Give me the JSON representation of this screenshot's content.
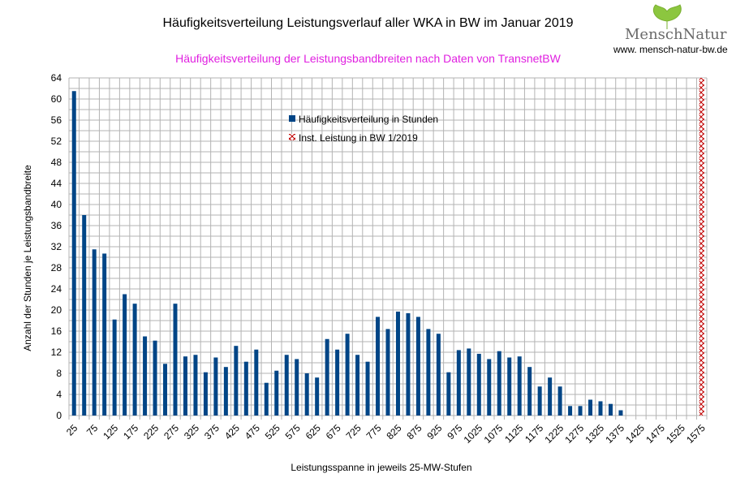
{
  "chart_data": {
    "type": "bar",
    "title": "Häufigkeitsverteilung Leistungsverlauf aller WKA in BW im Januar 2019",
    "subtitle": "Häufigkeitsverteilung der Leistungsbandbreiten nach Daten von TransnetBW",
    "xlabel": "Leistungsspanne in jeweils 25-MW-Stufen",
    "ylabel": "Anzahl der Stunden je Leistungsbandbreite",
    "ylim": [
      0,
      64
    ],
    "yticks": [
      0,
      4,
      8,
      12,
      16,
      20,
      24,
      28,
      32,
      36,
      40,
      44,
      48,
      52,
      56,
      60,
      64
    ],
    "grid": true,
    "legend_position": "top-center",
    "categories": [
      25,
      50,
      75,
      100,
      125,
      150,
      175,
      200,
      225,
      250,
      275,
      300,
      325,
      350,
      375,
      400,
      425,
      450,
      475,
      500,
      525,
      550,
      575,
      600,
      625,
      650,
      675,
      700,
      725,
      750,
      775,
      800,
      825,
      850,
      875,
      900,
      925,
      950,
      975,
      1000,
      1025,
      1050,
      1075,
      1100,
      1125,
      1150,
      1175,
      1200,
      1225,
      1250,
      1275,
      1300,
      1325,
      1350,
      1375,
      1400,
      1425,
      1450,
      1475,
      1500,
      1525,
      1550,
      1575
    ],
    "series": [
      {
        "name": "Häufigkeitsverteilung in Stunden",
        "color": "#004586",
        "values": [
          61.5,
          38,
          31.5,
          30.7,
          18.2,
          23,
          21.2,
          15,
          14.2,
          9.8,
          21.2,
          11.2,
          11.5,
          8.2,
          11,
          9.2,
          13.2,
          10.2,
          12.5,
          6.2,
          8.5,
          11.5,
          10.7,
          8,
          7.2,
          14.5,
          12.5,
          15.5,
          11.5,
          10.2,
          18.7,
          16.4,
          19.7,
          19.4,
          18.7,
          16.4,
          15.5,
          8.2,
          12.4,
          12.7,
          11.7,
          10.7,
          12.2,
          11,
          11.2,
          9.2,
          5.5,
          7.2,
          5.5,
          1.8,
          1.8,
          3,
          2.7,
          2.2,
          1,
          0,
          0,
          0,
          0,
          0,
          0,
          0,
          0
        ]
      },
      {
        "name": "Inst. Leistung in BW 1/2019",
        "color": "#c00000",
        "category": 1575,
        "value": 64
      }
    ]
  },
  "logo": {
    "brand": "MenschNatur",
    "url": "www. mensch-natur-bw.de"
  }
}
